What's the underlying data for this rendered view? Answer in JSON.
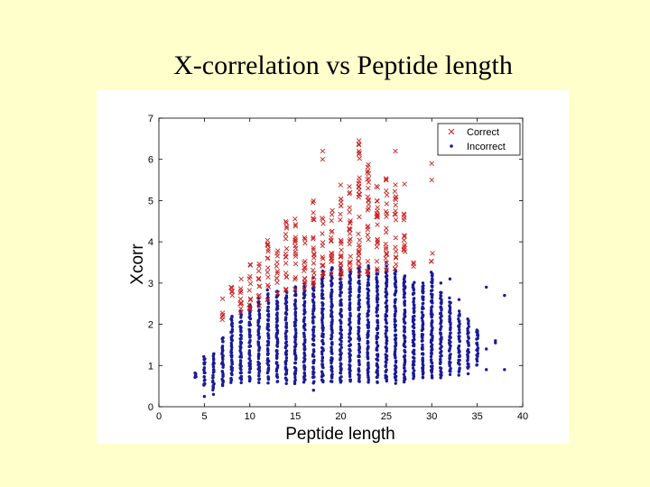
{
  "slide": {
    "title": "X-correlation vs Peptide length"
  },
  "chart_data": {
    "type": "scatter",
    "title": "X-correlation vs Peptide length",
    "xlabel": "Peptide length",
    "ylabel": "Xcorr",
    "xlim": [
      0,
      40
    ],
    "ylim": [
      0,
      7
    ],
    "xticks": [
      0,
      5,
      10,
      15,
      20,
      25,
      30,
      35,
      40
    ],
    "yticks": [
      0,
      1,
      2,
      3,
      4,
      5,
      6,
      7
    ],
    "legend_position": "top-right",
    "series": [
      {
        "name": "Correct",
        "marker": "x",
        "color": "#cc2222",
        "columns": [
          {
            "x": 7,
            "ymin": 2.1,
            "ymax": 2.7
          },
          {
            "x": 8,
            "ymin": 2.2,
            "ymax": 2.9
          },
          {
            "x": 9,
            "ymin": 2.2,
            "ymax": 3.3
          },
          {
            "x": 10,
            "ymin": 2.3,
            "ymax": 3.6
          },
          {
            "x": 11,
            "ymin": 2.3,
            "ymax": 3.5
          },
          {
            "x": 12,
            "ymin": 2.5,
            "ymax": 4.1
          },
          {
            "x": 13,
            "ymin": 2.6,
            "ymax": 3.9
          },
          {
            "x": 14,
            "ymin": 2.7,
            "ymax": 4.5
          },
          {
            "x": 15,
            "ymin": 2.8,
            "ymax": 4.6
          },
          {
            "x": 16,
            "ymin": 2.8,
            "ymax": 4.2
          },
          {
            "x": 17,
            "ymin": 2.9,
            "ymax": 5.1
          },
          {
            "x": 18,
            "ymin": 3.1,
            "ymax": 4.7
          },
          {
            "x": 19,
            "ymin": 3.0,
            "ymax": 4.8
          },
          {
            "x": 20,
            "ymin": 3.1,
            "ymax": 5.5
          },
          {
            "x": 21,
            "ymin": 3.2,
            "ymax": 5.4
          },
          {
            "x": 22,
            "ymin": 3.2,
            "ymax": 6.4
          },
          {
            "x": 23,
            "ymin": 3.2,
            "ymax": 5.9
          },
          {
            "x": 24,
            "ymin": 3.3,
            "ymax": 5.5
          },
          {
            "x": 25,
            "ymin": 3.3,
            "ymax": 5.6
          },
          {
            "x": 26,
            "ymin": 3.3,
            "ymax": 5.4
          },
          {
            "x": 27,
            "ymin": 3.5,
            "ymax": 4.8
          },
          {
            "x": 28,
            "ymin": 3.4,
            "ymax": 3.5
          },
          {
            "x": 30,
            "ymin": 3.5,
            "ymax": 3.8
          }
        ],
        "outliers": [
          {
            "x": 18,
            "y": 6.2
          },
          {
            "x": 18,
            "y": 6.0
          },
          {
            "x": 22,
            "y": 6.45
          },
          {
            "x": 22,
            "y": 6.2
          },
          {
            "x": 26,
            "y": 6.2
          },
          {
            "x": 30,
            "y": 5.9
          },
          {
            "x": 30,
            "y": 5.5
          },
          {
            "x": 21,
            "y": 5.2
          },
          {
            "x": 23,
            "y": 5.3
          },
          {
            "x": 27,
            "y": 5.4
          }
        ]
      },
      {
        "name": "Incorrect",
        "marker": "dot",
        "color": "#1a1a99",
        "columns": [
          {
            "x": 4,
            "ymin": 0.7,
            "ymax": 0.8
          },
          {
            "x": 5,
            "ymin": 0.5,
            "ymax": 1.2
          },
          {
            "x": 6,
            "ymin": 0.4,
            "ymax": 1.3
          },
          {
            "x": 7,
            "ymin": 0.5,
            "ymax": 1.7
          },
          {
            "x": 8,
            "ymin": 0.6,
            "ymax": 2.2
          },
          {
            "x": 9,
            "ymin": 0.6,
            "ymax": 2.3
          },
          {
            "x": 10,
            "ymin": 0.6,
            "ymax": 2.5
          },
          {
            "x": 11,
            "ymin": 0.6,
            "ymax": 2.6
          },
          {
            "x": 12,
            "ymin": 0.6,
            "ymax": 2.8
          },
          {
            "x": 13,
            "ymin": 0.6,
            "ymax": 2.8
          },
          {
            "x": 14,
            "ymin": 0.6,
            "ymax": 2.8
          },
          {
            "x": 15,
            "ymin": 0.6,
            "ymax": 2.9
          },
          {
            "x": 16,
            "ymin": 0.6,
            "ymax": 3.0
          },
          {
            "x": 17,
            "ymin": 0.6,
            "ymax": 3.1
          },
          {
            "x": 18,
            "ymin": 0.6,
            "ymax": 3.3
          },
          {
            "x": 19,
            "ymin": 0.6,
            "ymax": 3.4
          },
          {
            "x": 20,
            "ymin": 0.6,
            "ymax": 3.4
          },
          {
            "x": 21,
            "ymin": 0.6,
            "ymax": 3.3
          },
          {
            "x": 22,
            "ymin": 0.6,
            "ymax": 3.4
          },
          {
            "x": 23,
            "ymin": 0.6,
            "ymax": 3.4
          },
          {
            "x": 24,
            "ymin": 0.6,
            "ymax": 3.3
          },
          {
            "x": 25,
            "ymin": 0.6,
            "ymax": 3.4
          },
          {
            "x": 26,
            "ymin": 0.6,
            "ymax": 3.3
          },
          {
            "x": 27,
            "ymin": 0.6,
            "ymax": 3.2
          },
          {
            "x": 28,
            "ymin": 0.7,
            "ymax": 3.0
          },
          {
            "x": 29,
            "ymin": 0.7,
            "ymax": 3.0
          },
          {
            "x": 30,
            "ymin": 0.7,
            "ymax": 3.3
          },
          {
            "x": 31,
            "ymin": 0.7,
            "ymax": 2.8
          },
          {
            "x": 32,
            "ymin": 0.8,
            "ymax": 2.6
          },
          {
            "x": 33,
            "ymin": 0.8,
            "ymax": 2.3
          },
          {
            "x": 34,
            "ymin": 0.9,
            "ymax": 2.1
          },
          {
            "x": 35,
            "ymin": 1.0,
            "ymax": 1.9
          }
        ],
        "outliers": [
          {
            "x": 5,
            "y": 0.25
          },
          {
            "x": 6,
            "y": 0.3
          },
          {
            "x": 17,
            "y": 0.4
          },
          {
            "x": 34,
            "y": 0.95
          },
          {
            "x": 35,
            "y": 1.8
          },
          {
            "x": 36,
            "y": 0.9
          },
          {
            "x": 36,
            "y": 1.4
          },
          {
            "x": 37,
            "y": 1.6
          },
          {
            "x": 37,
            "y": 1.55
          },
          {
            "x": 38,
            "y": 0.9
          },
          {
            "x": 38,
            "y": 2.7
          },
          {
            "x": 36,
            "y": 2.9
          },
          {
            "x": 31,
            "y": 3.0
          },
          {
            "x": 32,
            "y": 3.1
          },
          {
            "x": 25,
            "y": 3.5
          },
          {
            "x": 33,
            "y": 2.6
          },
          {
            "x": 34,
            "y": 0.8
          }
        ]
      }
    ]
  }
}
